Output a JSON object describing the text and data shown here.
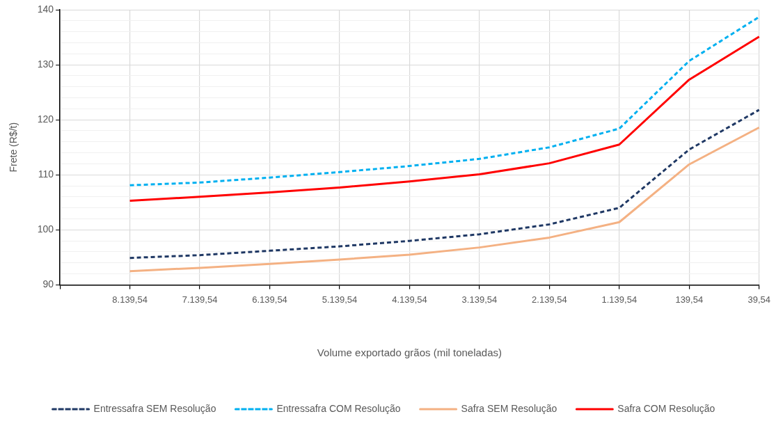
{
  "chart_data": {
    "type": "line",
    "xlabel": "Volume exportado grãos (mil toneladas)",
    "ylabel": "Frete (R$/t)",
    "categories": [
      null,
      "8.139,54",
      "7.139,54",
      "6.139,54",
      "5.139,54",
      "4.139,54",
      "3.139,54",
      "2.139,54",
      "1.139,54",
      "139,54",
      "39,54"
    ],
    "series": [
      {
        "name": "Entressafra SEM Resolução",
        "color": "#1f3864",
        "line_style": "dashed",
        "values": [
          null,
          94.9,
          95.4,
          96.2,
          97.0,
          98.0,
          99.2,
          101.0,
          104.0,
          114.6,
          121.8
        ]
      },
      {
        "name": "Entressafra COM Resolução",
        "color": "#00b0f0",
        "line_style": "dashed",
        "values": [
          null,
          108.1,
          108.6,
          109.5,
          110.5,
          111.6,
          112.9,
          115.0,
          118.4,
          130.7,
          138.7
        ]
      },
      {
        "name": "Safra SEM Resolução",
        "color": "#f4b183",
        "line_style": "solid",
        "values": [
          null,
          92.5,
          93.1,
          93.8,
          94.6,
          95.5,
          96.8,
          98.6,
          101.4,
          111.9,
          118.6
        ]
      },
      {
        "name": "Safra COM Resolução",
        "color": "#ff0000",
        "line_style": "solid",
        "values": [
          null,
          105.3,
          106.0,
          106.8,
          107.7,
          108.8,
          110.1,
          112.1,
          115.5,
          127.3,
          135.1
        ]
      }
    ],
    "ylim": [
      90,
      140
    ],
    "yticks": [
      90,
      {
        "value": 92,
        "label": null
      },
      {
        "value": 94,
        "label": null
      },
      {
        "value": 96,
        "label": null
      },
      {
        "value": 98,
        "label": null
      },
      100,
      {
        "value": 102,
        "label": null
      },
      {
        "value": 104,
        "label": null
      },
      {
        "value": 106,
        "label": null
      },
      {
        "value": 108,
        "label": null
      },
      110,
      {
        "value": 112,
        "label": null
      },
      {
        "value": 114,
        "label": null
      },
      {
        "value": 116,
        "label": null
      },
      {
        "value": 118,
        "label": null
      },
      120,
      {
        "value": 122,
        "label": null
      },
      {
        "value": 124,
        "label": null
      },
      {
        "value": 126,
        "label": null
      },
      {
        "value": 128,
        "label": null
      },
      130,
      {
        "value": 132,
        "label": null
      },
      {
        "value": 134,
        "label": null
      },
      {
        "value": 136,
        "label": null
      },
      {
        "value": 138,
        "label": null
      },
      140
    ],
    "grid": true,
    "legend": "bottom"
  }
}
